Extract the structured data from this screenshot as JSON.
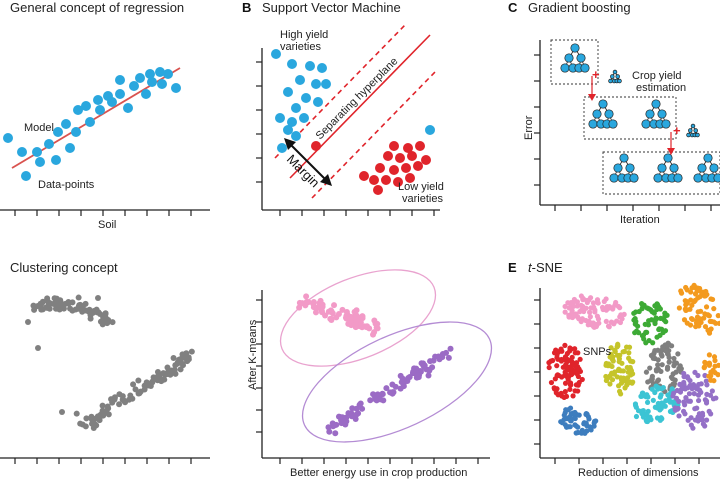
{
  "colors": {
    "blue": "#2AA7DE",
    "red": "#E0242B",
    "regression_line": "#D9534F",
    "gray": "#808080",
    "pink": "#F29AC7",
    "purple": "#9B6BC5",
    "pink_ellipse": "#E9A3CF",
    "purple_ellipse": "#B48CD4",
    "orange": "#F39A1E",
    "green": "#3DAA35",
    "olive": "#C5C42A",
    "darkgray": "#7F7F7F",
    "cyan": "#3CC4D4",
    "violet": "#9470C7",
    "steel": "#3D7DBE"
  },
  "panels": {
    "regression": {
      "title": "General concept of regression",
      "model_label": "Model",
      "points_label": "Data-points",
      "xlabel": "Soil"
    },
    "svm": {
      "letter": "B",
      "title": "Support Vector Machine",
      "high_label_1": "High yield",
      "high_label_2": "varieties",
      "low_label_1": "Low yield",
      "low_label_2": "varieties",
      "hyperplane_label": "Separating hyperplane",
      "margin_label": "Margin"
    },
    "boosting": {
      "letter": "C",
      "title": "Gradient boosting",
      "estimation_1": "Crop yield",
      "estimation_2": "estimation",
      "ylabel": "Error",
      "xlabel": "Iteration"
    },
    "clustering": {
      "title": "Clustering concept"
    },
    "kmeans": {
      "ylabel": "After K-means",
      "xlabel": "Better energy use in crop production"
    },
    "tsne": {
      "letter": "E",
      "title_italic": "t",
      "title_rest": "-SNE",
      "snps_label": "SNPs",
      "xlabel": "Reduction of dimensions"
    }
  }
}
